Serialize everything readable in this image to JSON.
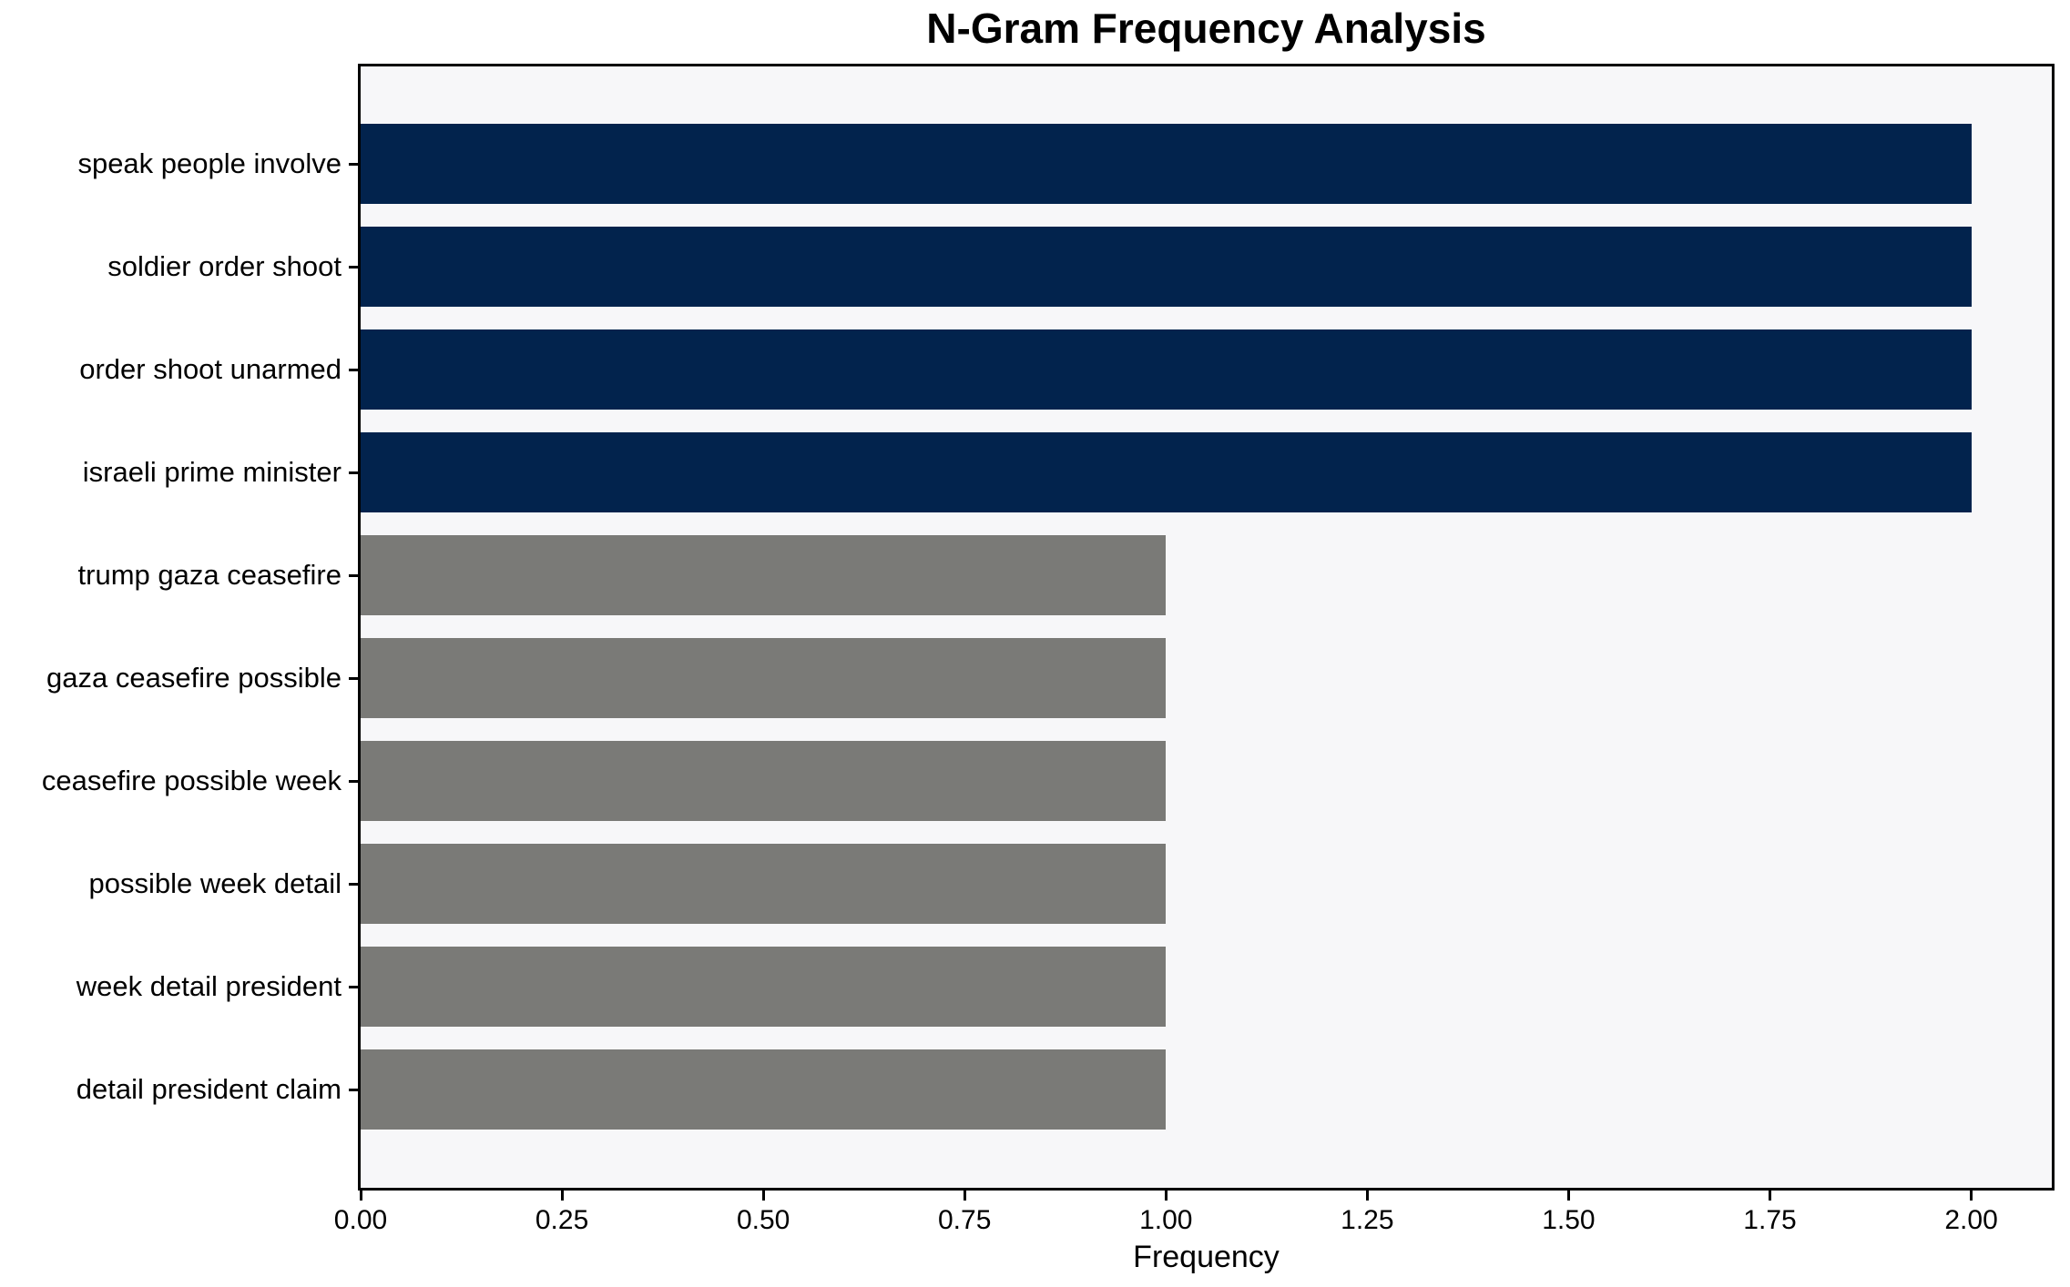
{
  "chart_data": {
    "type": "bar",
    "orientation": "horizontal",
    "title": "N-Gram Frequency Analysis",
    "xlabel": "Frequency",
    "ylabel": "",
    "categories": [
      "speak people involve",
      "soldier order shoot",
      "order shoot unarmed",
      "israeli prime minister",
      "trump gaza ceasefire",
      "gaza ceasefire possible",
      "ceasefire possible week",
      "possible week detail",
      "week detail president",
      "detail president claim"
    ],
    "values": [
      2,
      2,
      2,
      2,
      1,
      1,
      1,
      1,
      1,
      1
    ],
    "bar_colors": [
      "#02234d",
      "#02234d",
      "#02234d",
      "#02234d",
      "#7a7a77",
      "#7a7a77",
      "#7a7a77",
      "#7a7a77",
      "#7a7a77",
      "#7a7a77"
    ],
    "xlim": [
      0,
      2.1
    ],
    "xticks": [
      0.0,
      0.25,
      0.5,
      0.75,
      1.0,
      1.25,
      1.5,
      1.75,
      2.0
    ],
    "xtick_labels": [
      "0.00",
      "0.25",
      "0.50",
      "0.75",
      "1.00",
      "1.25",
      "1.50",
      "1.75",
      "2.00"
    ],
    "grid": false,
    "legend": "none",
    "colors": {
      "navy_bar": "#02234d",
      "gray_bar": "#7a7a77",
      "plot_background": "#f7f7f9",
      "figure_background": "#ffffff",
      "spine": "#000000"
    }
  }
}
